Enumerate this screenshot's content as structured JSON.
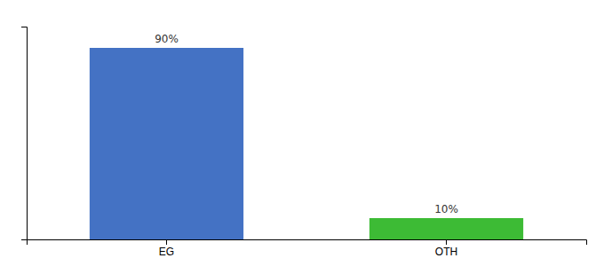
{
  "chart_data": {
    "type": "bar",
    "categories": [
      "EG",
      "OTH"
    ],
    "values": [
      90,
      10
    ],
    "value_labels": [
      "90%",
      "10%"
    ],
    "colors": [
      "#4472c4",
      "#3dbb35"
    ],
    "ylim": [
      0,
      100
    ],
    "data_labels": true,
    "tick_labels": "x",
    "grid": false
  }
}
